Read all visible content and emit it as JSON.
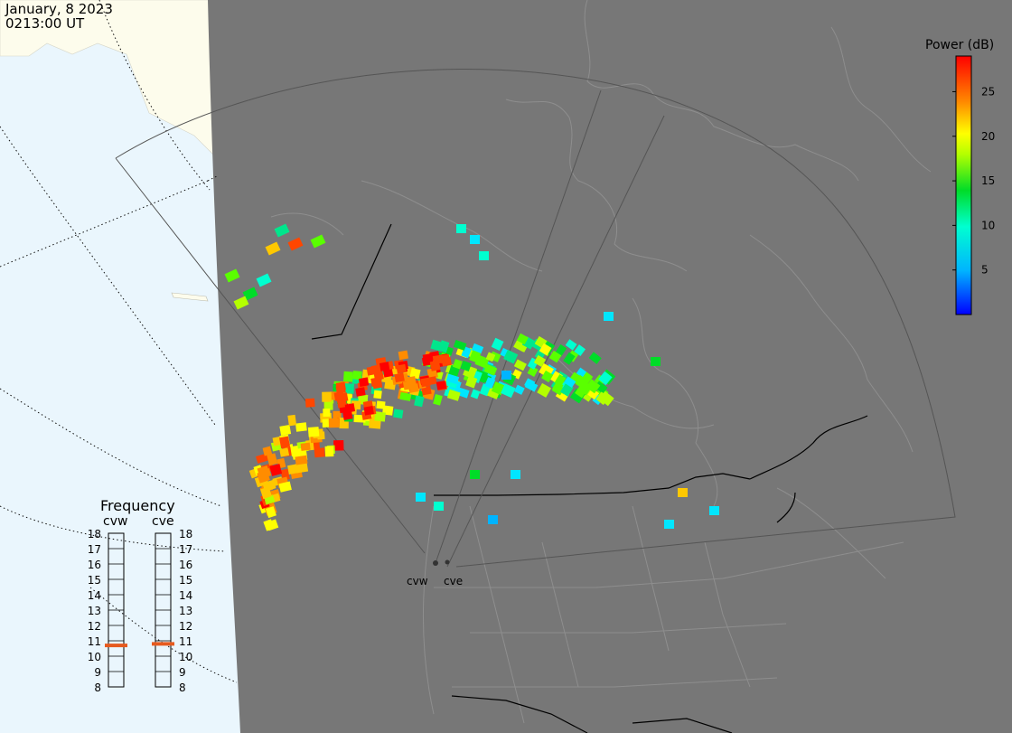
{
  "header": {
    "date": "January, 8 2023",
    "time": "0213:00 UT"
  },
  "colorbar": {
    "title": "Power (dB)",
    "ticks": [
      "25",
      "20",
      "15",
      "10",
      "5"
    ],
    "min": 0,
    "max": 29,
    "tick_values": [
      25,
      20,
      15,
      10,
      5
    ]
  },
  "frequency_panel": {
    "title": "Frequency",
    "radars": [
      {
        "name": "cvw",
        "frequency_mhz": 10.7
      },
      {
        "name": "cve",
        "frequency_mhz": 10.8
      }
    ],
    "scale": [
      "18",
      "17",
      "16",
      "15",
      "14",
      "13",
      "12",
      "11",
      "10",
      "9",
      "8"
    ]
  },
  "radar_sites": [
    {
      "name": "cvw"
    },
    {
      "name": "cve"
    }
  ],
  "colors": {
    "night": "#777777",
    "ocean_day": "#eaf6fd",
    "land_day": "#fdfcec",
    "indicator": "#e65a1e"
  }
}
